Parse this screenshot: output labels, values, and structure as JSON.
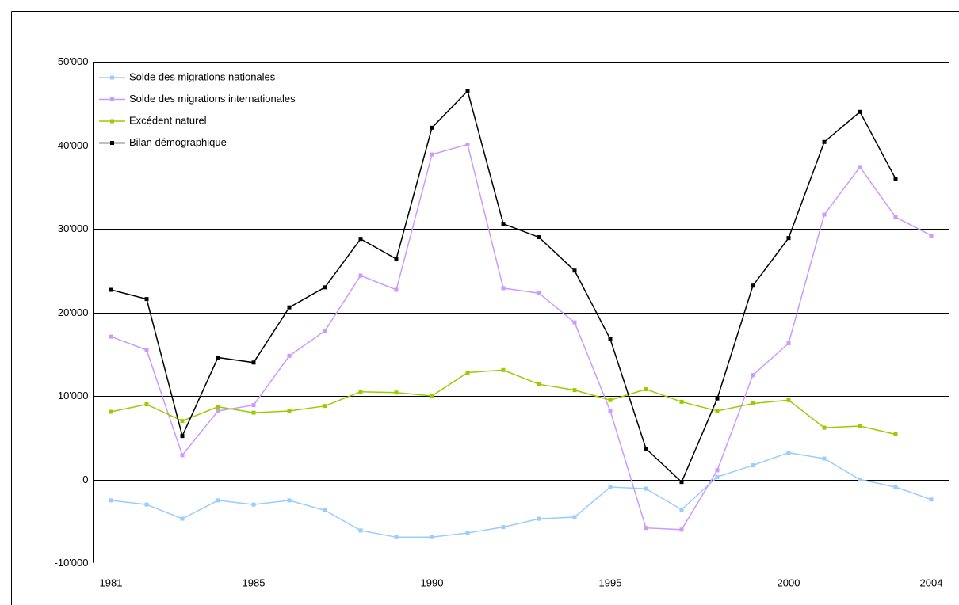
{
  "chart_data": {
    "type": "line",
    "x": [
      1981,
      1982,
      1983,
      1984,
      1985,
      1986,
      1987,
      1988,
      1989,
      1990,
      1991,
      1992,
      1993,
      1994,
      1995,
      1996,
      1997,
      1998,
      1999,
      2000,
      2001,
      2002,
      2003,
      2004
    ],
    "xlim": [
      1980.5,
      2004.5
    ],
    "xticks": [
      1981,
      1985,
      1990,
      1995,
      2000,
      2004
    ],
    "ylim": [
      -10000,
      50000
    ],
    "yticks": [
      {
        "value": -10000,
        "label": "-10'000"
      },
      0,
      {
        "value": 10000,
        "label": "10'000"
      },
      {
        "value": 20000,
        "label": "20'000"
      },
      {
        "value": 30000,
        "label": "30'000"
      },
      {
        "value": 40000,
        "label": "40'000"
      },
      {
        "value": 50000,
        "label": "50'000"
      }
    ],
    "grid": true,
    "legend": "top-left",
    "series": [
      {
        "name": "Solde des migrations nationales",
        "color": "#99ccff",
        "values": [
          -2500,
          -3000,
          -4700,
          -2500,
          -3000,
          -2500,
          -3700,
          -6100,
          -6900,
          -6900,
          -6400,
          -5700,
          -4700,
          -4500,
          -900,
          -1100,
          -3600,
          300,
          1700,
          3200,
          2500,
          0,
          -900,
          -2400
        ]
      },
      {
        "name": "Solde des migrations internationales",
        "color": "#cc99ff",
        "values": [
          17100,
          15500,
          2900,
          8200,
          8900,
          14800,
          17800,
          24400,
          22700,
          38900,
          40100,
          22900,
          22300,
          18800,
          8200,
          -5800,
          -6000,
          1100,
          12500,
          16300,
          31700,
          37400,
          31400,
          29200
        ]
      },
      {
        "name": "Excédent naturel",
        "color": "#99cc00",
        "values": [
          8100,
          9000,
          7000,
          8700,
          8000,
          8200,
          8800,
          10500,
          10400,
          10000,
          12800,
          13100,
          11400,
          10700,
          9500,
          10800,
          9300,
          8200,
          9100,
          9500,
          6200,
          6400,
          5400,
          null
        ]
      },
      {
        "name": "Bilan démographique",
        "color": "#000000",
        "values": [
          22700,
          21600,
          5200,
          14600,
          14000,
          20600,
          23000,
          28800,
          26400,
          42100,
          46500,
          30600,
          29000,
          25000,
          16800,
          3700,
          -300,
          9700,
          23200,
          28900,
          40400,
          44000,
          36000,
          null
        ]
      }
    ]
  }
}
